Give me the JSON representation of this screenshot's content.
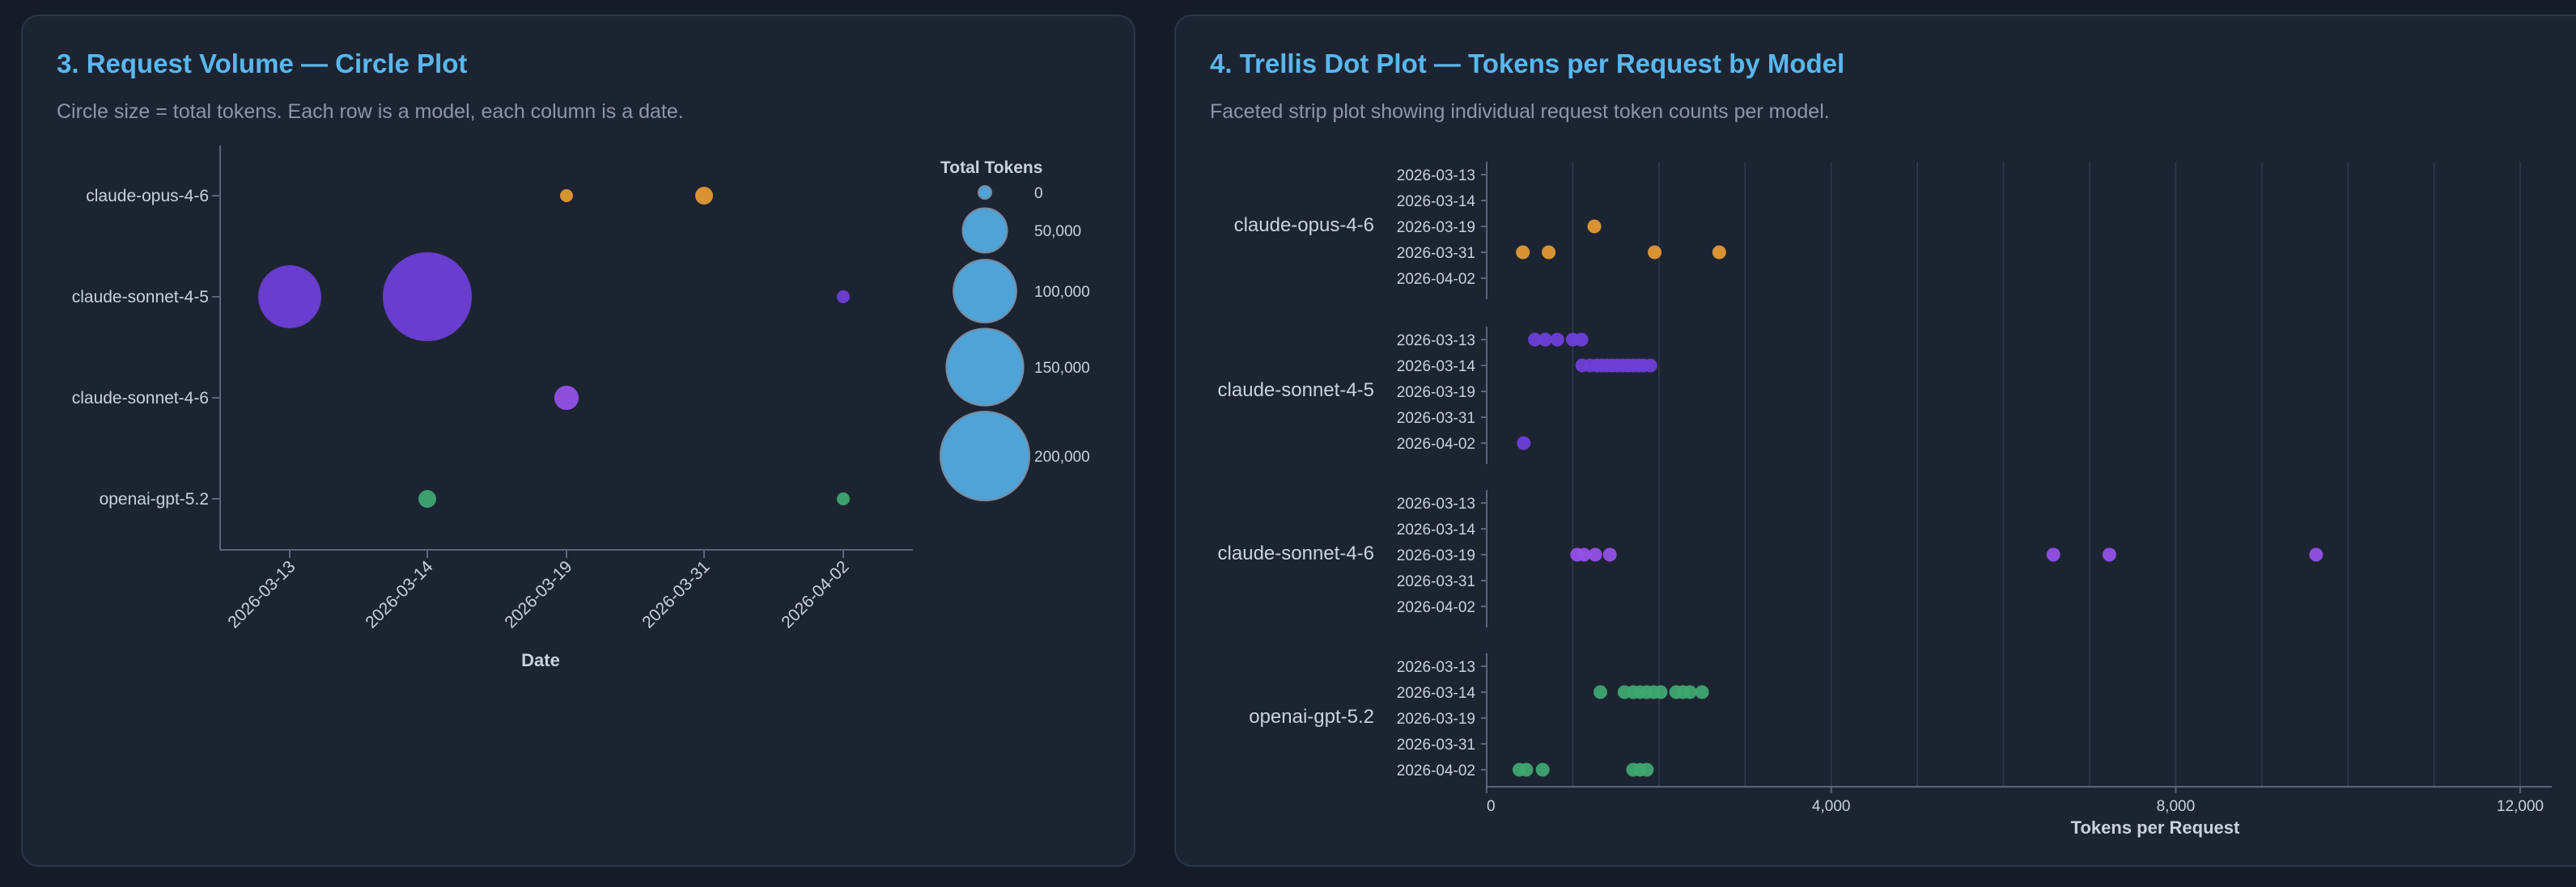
{
  "colors": {
    "page_bg": "#161c27",
    "panel_bg": "#1d2431",
    "title": "#58b7ee",
    "subtitle": "#8c96a6",
    "axis": "#5a6677",
    "grid": "#2f3b4a",
    "text": "#c9d1dc",
    "legend_circle": "#4fa3d6"
  },
  "model_colors": {
    "claude-opus-4-6": "#e39a35",
    "claude-sonnet-4-5": "#6e3fd6",
    "claude-sonnet-4-6": "#9351e6",
    "openai-gpt-5.2": "#3ea771"
  },
  "panels": [
    {
      "title": "3. Request Volume — Circle Plot",
      "subtitle": "Circle size = total tokens. Each row is a model, each column is a date."
    },
    {
      "title": "4. Trellis Dot Plot — Tokens per Request by Model",
      "subtitle": "Faceted strip plot showing individual request token counts per model."
    }
  ],
  "chart_data": [
    {
      "type": "scatter",
      "subtype": "circle-plot",
      "xlabel": "Date",
      "ylabel": "",
      "x_categories": [
        "2026-03-13",
        "2026-03-14",
        "2026-03-19",
        "2026-03-31",
        "2026-04-02"
      ],
      "y_categories": [
        "claude-opus-4-6",
        "claude-sonnet-4-5",
        "claude-sonnet-4-6",
        "openai-gpt-5.2"
      ],
      "size_field": "Total Tokens",
      "points": [
        {
          "model": "claude-opus-4-6",
          "date": "2026-03-19",
          "tokens": 3000
        },
        {
          "model": "claude-opus-4-6",
          "date": "2026-03-31",
          "tokens": 8000
        },
        {
          "model": "claude-sonnet-4-5",
          "date": "2026-03-13",
          "tokens": 100000
        },
        {
          "model": "claude-sonnet-4-5",
          "date": "2026-03-14",
          "tokens": 200000
        },
        {
          "model": "claude-sonnet-4-5",
          "date": "2026-04-02",
          "tokens": 3000
        },
        {
          "model": "claude-sonnet-4-6",
          "date": "2026-03-19",
          "tokens": 15000
        },
        {
          "model": "openai-gpt-5.2",
          "date": "2026-03-14",
          "tokens": 8000
        },
        {
          "model": "openai-gpt-5.2",
          "date": "2026-04-02",
          "tokens": 3000
        }
      ],
      "legend": {
        "title": "Total Tokens",
        "position": "right",
        "entries": [
          {
            "label": "0",
            "value": 0
          },
          {
            "label": "50,000",
            "value": 50000
          },
          {
            "label": "100,000",
            "value": 100000
          },
          {
            "label": "150,000",
            "value": 150000
          },
          {
            "label": "200,000",
            "value": 200000
          }
        ]
      },
      "grid": false
    },
    {
      "type": "scatter",
      "subtype": "trellis-strip",
      "xlabel": "Tokens per Request",
      "xlim": [
        0,
        12300
      ],
      "x_ticks": [
        {
          "label": "0",
          "value": 0
        },
        {
          "label": "4,000",
          "value": 4000
        },
        {
          "label": "8,000",
          "value": 8000
        },
        {
          "label": "12,000",
          "value": 12000
        }
      ],
      "x_gridlines": [
        0,
        1000,
        2000,
        3000,
        4000,
        5000,
        6000,
        7000,
        8000,
        9000,
        10000,
        11000,
        12000
      ],
      "grid": true,
      "facets": [
        {
          "model": "claude-opus-4-6",
          "dates": [
            "2026-03-13",
            "2026-03-14",
            "2026-03-19",
            "2026-03-31",
            "2026-04-02"
          ],
          "points": [
            {
              "date": "2026-03-19",
              "x": 1250
            },
            {
              "date": "2026-03-31",
              "x": 420
            },
            {
              "date": "2026-03-31",
              "x": 720
            },
            {
              "date": "2026-03-31",
              "x": 1950
            },
            {
              "date": "2026-03-31",
              "x": 2700
            }
          ]
        },
        {
          "model": "claude-sonnet-4-5",
          "dates": [
            "2026-03-13",
            "2026-03-14",
            "2026-03-19",
            "2026-03-31",
            "2026-04-02"
          ],
          "points": [
            {
              "date": "2026-03-13",
              "x": 560
            },
            {
              "date": "2026-03-13",
              "x": 680
            },
            {
              "date": "2026-03-13",
              "x": 820
            },
            {
              "date": "2026-03-13",
              "x": 1000
            },
            {
              "date": "2026-03-13",
              "x": 1100
            },
            {
              "date": "2026-03-14",
              "x": 1110
            },
            {
              "date": "2026-03-14",
              "x": 1200
            },
            {
              "date": "2026-03-14",
              "x": 1280
            },
            {
              "date": "2026-03-14",
              "x": 1340
            },
            {
              "date": "2026-03-14",
              "x": 1400
            },
            {
              "date": "2026-03-14",
              "x": 1460
            },
            {
              "date": "2026-03-14",
              "x": 1520
            },
            {
              "date": "2026-03-14",
              "x": 1580
            },
            {
              "date": "2026-03-14",
              "x": 1640
            },
            {
              "date": "2026-03-14",
              "x": 1700
            },
            {
              "date": "2026-03-14",
              "x": 1760
            },
            {
              "date": "2026-03-14",
              "x": 1820
            },
            {
              "date": "2026-03-14",
              "x": 1900
            },
            {
              "date": "2026-04-02",
              "x": 430
            }
          ]
        },
        {
          "model": "claude-sonnet-4-6",
          "dates": [
            "2026-03-13",
            "2026-03-14",
            "2026-03-19",
            "2026-03-31",
            "2026-04-02"
          ],
          "points": [
            {
              "date": "2026-03-19",
              "x": 1050
            },
            {
              "date": "2026-03-19",
              "x": 1130
            },
            {
              "date": "2026-03-19",
              "x": 1260
            },
            {
              "date": "2026-03-19",
              "x": 1430
            },
            {
              "date": "2026-03-19",
              "x": 6580
            },
            {
              "date": "2026-03-19",
              "x": 7230
            },
            {
              "date": "2026-03-19",
              "x": 9630
            }
          ]
        },
        {
          "model": "openai-gpt-5.2",
          "dates": [
            "2026-03-13",
            "2026-03-14",
            "2026-03-19",
            "2026-03-31",
            "2026-04-02"
          ],
          "points": [
            {
              "date": "2026-03-14",
              "x": 1320
            },
            {
              "date": "2026-03-14",
              "x": 1600
            },
            {
              "date": "2026-03-14",
              "x": 1700
            },
            {
              "date": "2026-03-14",
              "x": 1780
            },
            {
              "date": "2026-03-14",
              "x": 1860
            },
            {
              "date": "2026-03-14",
              "x": 1940
            },
            {
              "date": "2026-03-14",
              "x": 2020
            },
            {
              "date": "2026-03-14",
              "x": 2200
            },
            {
              "date": "2026-03-14",
              "x": 2280
            },
            {
              "date": "2026-03-14",
              "x": 2360
            },
            {
              "date": "2026-03-14",
              "x": 2500
            },
            {
              "date": "2026-04-02",
              "x": 380
            },
            {
              "date": "2026-04-02",
              "x": 460
            },
            {
              "date": "2026-04-02",
              "x": 650
            },
            {
              "date": "2026-04-02",
              "x": 1700
            },
            {
              "date": "2026-04-02",
              "x": 1780
            },
            {
              "date": "2026-04-02",
              "x": 1860
            }
          ]
        }
      ]
    }
  ]
}
